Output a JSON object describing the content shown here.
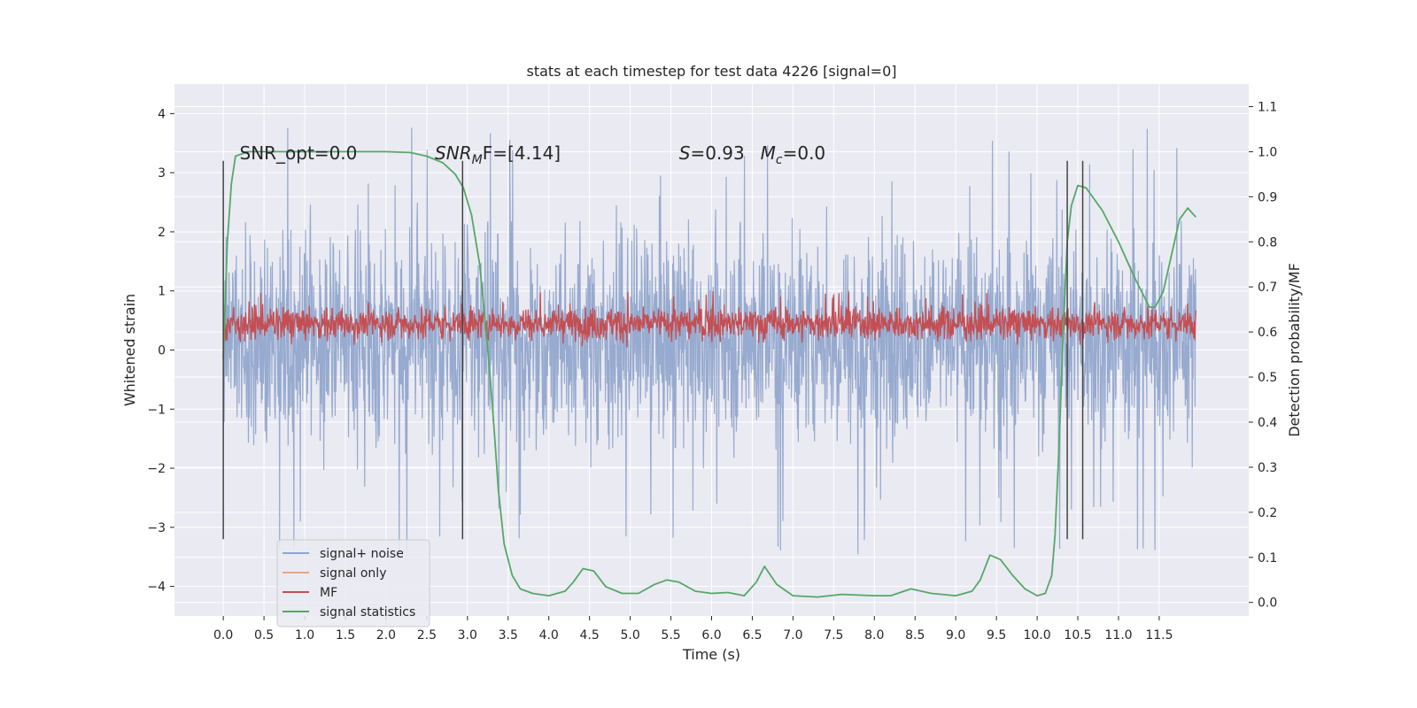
{
  "chart_data": {
    "type": "line",
    "title": "stats at each timestep for test data 4226 [signal=0]",
    "xlabel": "Time (s)",
    "ylabel": "Whitened strain",
    "y2label": "Detection probability/MF",
    "xlim": [
      -0.6,
      12.6
    ],
    "ylim": [
      -4.5,
      4.5
    ],
    "y2lim": [
      -0.03,
      1.15
    ],
    "xticks": [
      "0.0",
      "0.5",
      "1.0",
      "1.5",
      "2.0",
      "2.5",
      "3.0",
      "3.5",
      "4.0",
      "4.5",
      "5.0",
      "5.5",
      "6.0",
      "6.5",
      "7.0",
      "7.5",
      "8.0",
      "8.5",
      "9.0",
      "9.5",
      "10.0",
      "10.5",
      "11.0",
      "11.5"
    ],
    "yticks": [
      "−4",
      "−3",
      "−2",
      "−1",
      "0",
      "1",
      "2",
      "3",
      "4"
    ],
    "y2ticks": [
      "0.0",
      "0.1",
      "0.2",
      "0.3",
      "0.4",
      "0.5",
      "0.6",
      "0.7",
      "0.8",
      "0.9",
      "1.0",
      "1.1"
    ],
    "grid": true,
    "legend": {
      "placement": "lower-left",
      "entries": [
        {
          "label": "signal+ noise",
          "color": "#92a6cc"
        },
        {
          "label": "signal only",
          "color": "#e9a587"
        },
        {
          "label": "MF",
          "color": "#c44e52"
        },
        {
          "label": "signal statistics",
          "color": "#55a868"
        }
      ]
    },
    "annotations": {
      "snr_opt": "SNR_opt=0.0",
      "snr_mf_prefix": "SNR",
      "snr_mf_sub": "M",
      "snr_mf_suffix": "F=[4.14]",
      "s_label": "S",
      "s_value": "=0.93",
      "mc_label": "M",
      "mc_sub": "c",
      "mc_value": "=0.0"
    },
    "vertical_lines_x": [
      0.0,
      2.94,
      10.37,
      10.56
    ],
    "series": [
      {
        "name": "signal+ noise",
        "axis": "left",
        "color": "#92a6cc",
        "x_range": [
          0.0,
          11.95
        ],
        "envelope_typical": [
          -2.0,
          2.4
        ],
        "extremes": {
          "max": 4.1,
          "min": -4.05
        }
      },
      {
        "name": "MF",
        "axis": "left",
        "color": "#c44e52",
        "x_range": [
          0.0,
          11.95
        ],
        "envelope_typical": [
          0.05,
          0.85
        ],
        "extremes": {
          "max": 1.0,
          "min": 0.0
        }
      },
      {
        "name": "signal statistics",
        "axis": "right",
        "color": "#55a868",
        "x": [
          0.0,
          0.05,
          0.1,
          0.15,
          0.3,
          0.5,
          1.0,
          1.5,
          2.0,
          2.3,
          2.5,
          2.7,
          2.85,
          2.95,
          3.05,
          3.15,
          3.22,
          3.28,
          3.33,
          3.38,
          3.45,
          3.55,
          3.65,
          3.8,
          4.0,
          4.2,
          4.3,
          4.42,
          4.55,
          4.7,
          4.9,
          5.1,
          5.3,
          5.45,
          5.6,
          5.8,
          6.0,
          6.2,
          6.4,
          6.55,
          6.65,
          6.8,
          7.0,
          7.3,
          7.6,
          8.0,
          8.2,
          8.45,
          8.7,
          9.0,
          9.2,
          9.3,
          9.42,
          9.55,
          9.7,
          9.85,
          10.0,
          10.1,
          10.18,
          10.22,
          10.27,
          10.32,
          10.37,
          10.42,
          10.5,
          10.6,
          10.8,
          11.0,
          11.2,
          11.38,
          11.45,
          11.55,
          11.65,
          11.75,
          11.85,
          11.95
        ],
        "y": [
          0.54,
          0.8,
          0.93,
          0.99,
          1.0,
          1.0,
          1.0,
          1.0,
          1.0,
          0.998,
          0.99,
          0.975,
          0.95,
          0.92,
          0.86,
          0.75,
          0.62,
          0.5,
          0.38,
          0.25,
          0.13,
          0.06,
          0.03,
          0.02,
          0.015,
          0.025,
          0.045,
          0.075,
          0.07,
          0.035,
          0.02,
          0.02,
          0.04,
          0.05,
          0.045,
          0.025,
          0.02,
          0.022,
          0.015,
          0.045,
          0.08,
          0.04,
          0.015,
          0.012,
          0.018,
          0.015,
          0.015,
          0.03,
          0.02,
          0.015,
          0.025,
          0.05,
          0.105,
          0.095,
          0.06,
          0.03,
          0.015,
          0.02,
          0.06,
          0.15,
          0.35,
          0.6,
          0.8,
          0.88,
          0.925,
          0.92,
          0.87,
          0.8,
          0.72,
          0.655,
          0.655,
          0.69,
          0.77,
          0.85,
          0.875,
          0.855
        ]
      }
    ]
  }
}
